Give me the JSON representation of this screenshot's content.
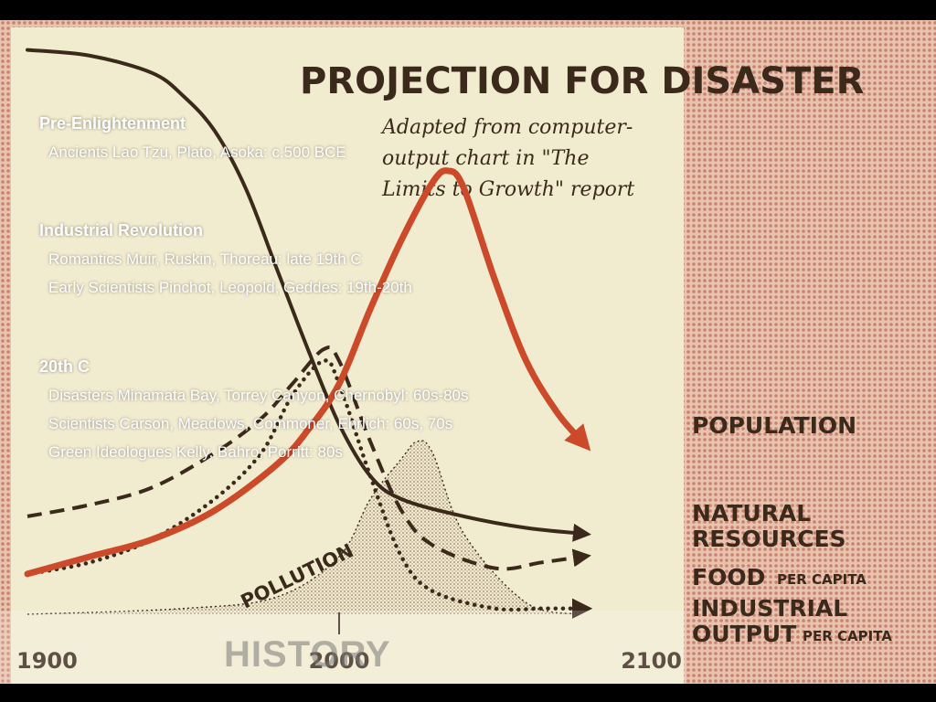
{
  "chart_data": {
    "type": "line",
    "title": "PROJECTION FOR DISASTER",
    "subtitle": [
      "Adapted from computer-",
      "output chart in \"The",
      "Limits to Growth\" report"
    ],
    "xlabel": "",
    "ylabel": "",
    "x_ticks": [
      "1900",
      "2000",
      "2100"
    ],
    "xlim": [
      1900,
      2100
    ],
    "ylim": [
      0,
      100
    ],
    "series": [
      {
        "name": "POPULATION",
        "style": "solid-thick",
        "color": "#cc4a2a",
        "x": [
          1900,
          1920,
          1940,
          1960,
          1980,
          1990,
          2000,
          2010,
          2020,
          2030,
          2035,
          2040,
          2050,
          2060,
          2070,
          2078
        ],
        "y": [
          7,
          10,
          13,
          18,
          26,
          32,
          40,
          53,
          65,
          75,
          77,
          74,
          58,
          44,
          35,
          30
        ]
      },
      {
        "name": "NATURAL RESOURCES",
        "style": "solid",
        "color": "#3b2a1c",
        "x": [
          1900,
          1920,
          1940,
          1950,
          1960,
          1970,
          1980,
          1990,
          2000,
          2010,
          2020,
          2040,
          2060,
          2078
        ],
        "y": [
          98,
          97,
          94,
          90,
          84,
          74,
          60,
          46,
          33,
          24,
          20,
          17,
          15,
          14
        ]
      },
      {
        "name": "FOOD PER CAPITA",
        "style": "dashed",
        "color": "#3b2a1c",
        "x": [
          1900,
          1920,
          1940,
          1960,
          1975,
          1985,
          1995,
          2000,
          2010,
          2020,
          2030,
          2050,
          2065,
          2078
        ],
        "y": [
          17,
          19,
          22,
          28,
          34,
          40,
          46,
          44,
          30,
          18,
          12,
          8,
          9,
          10
        ]
      },
      {
        "name": "INDUSTRIAL OUTPUT PER CAPITA",
        "style": "dotted",
        "color": "#3b2a1c",
        "x": [
          1900,
          1920,
          1940,
          1960,
          1975,
          1985,
          1995,
          2000,
          2010,
          2020,
          2030,
          2050,
          2065,
          2078
        ],
        "y": [
          7,
          9,
          13,
          20,
          28,
          38,
          44,
          40,
          24,
          10,
          4,
          1,
          1,
          1
        ]
      },
      {
        "name": "POLLUTION",
        "style": "shaded",
        "color": "#3b2a1c",
        "x": [
          1900,
          1950,
          1980,
          2000,
          2010,
          2020,
          2025,
          2030,
          2040,
          2060,
          2078
        ],
        "y": [
          0,
          1,
          3,
          10,
          20,
          27,
          30,
          28,
          14,
          2,
          0
        ]
      }
    ],
    "series_labels": {
      "population": "POPULATION",
      "natural_resources_line1": "NATURAL",
      "natural_resources_line2": "RESOURCES",
      "food_main": "FOOD",
      "food_sub": "PER CAPITA",
      "industrial_line1": "INDUSTRIAL",
      "industrial_main": "OUTPUT",
      "industrial_sub": "PER CAPITA",
      "pollution": "POLLUTION"
    },
    "grid": false,
    "colors": {
      "background": "#f1ebcf",
      "ink": "#3b2a1c",
      "accent": "#cc4a2a",
      "halftone": "#d79c86"
    }
  },
  "eras": [
    {
      "heading": "Pre-Enlightenment",
      "lines": [
        "Ancients Lao Tzu, Plato, Asoka: c.500 BCE"
      ]
    },
    {
      "heading": "Industrial Revolution",
      "lines": [
        "Romantics Muir, Ruskin, Thoreau: late 19th C",
        "Early Scientists Pinchot, Leopold, Geddes: 19th-20th"
      ]
    },
    {
      "heading": "20th C",
      "lines": [
        "Disasters Minamata Bay, Torrey Canyon, Chernobyl: 60s-80s",
        "Scientists Carson, Meadows, Commoner, Ehrlich: 60s, 70s",
        "Green Ideologues Kelly, Bahro, Porritt: 80s"
      ]
    }
  ],
  "footer": {
    "label": "HISTORY"
  }
}
